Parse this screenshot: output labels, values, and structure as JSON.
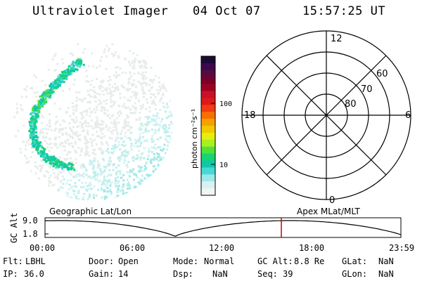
{
  "header": {
    "instrument": "Ultraviolet Imager",
    "date": "04 Oct 07",
    "time": "15:57:25 UT"
  },
  "colorbar": {
    "label": "photon cm⁻²s⁻¹",
    "ticks": [
      "100",
      "10"
    ],
    "colors": [
      "#1c0a36",
      "#3a0a4a",
      "#5a0a40",
      "#7a0028",
      "#a00020",
      "#c8102a",
      "#e01818",
      "#f03c10",
      "#f57000",
      "#f8a000",
      "#f2c800",
      "#e6ee10",
      "#a8f020",
      "#50e23a",
      "#18d470",
      "#10c8a8",
      "#48d8d8",
      "#9ee8e8",
      "#d8f2f2",
      "#f0f6f4"
    ]
  },
  "polar_plot": {
    "mlt_labels": {
      "top": "12",
      "right": "6",
      "bottom": "0",
      "left": "18"
    },
    "lat_labels": [
      "60",
      "70",
      "80"
    ]
  },
  "track": {
    "y_label": "GC Alt",
    "y_ticks": [
      "9.0",
      "1.8"
    ],
    "left_title": "Geographic Lat/Lon",
    "right_title": "Apex MLat/MLT",
    "x_ticks": [
      "00:00",
      "06:00",
      "12:00",
      "18:00",
      "23:59"
    ],
    "current_time_fraction": 0.664,
    "line_color": "#cc0000"
  },
  "info": {
    "rows": [
      [
        [
          "Flt:",
          "LBHL"
        ],
        [
          "Door:",
          "Open"
        ],
        [
          "Mode:",
          "Normal"
        ],
        [
          "GC Alt:",
          "8.8 Re"
        ],
        [
          "GLat:",
          "NaN"
        ]
      ],
      [
        [
          "IP:",
          "36.0"
        ],
        [
          "Gain:",
          "14"
        ],
        [
          "Dsp:",
          "NaN"
        ],
        [
          "Seq:",
          "39"
        ],
        [
          "GLon:",
          "NaN"
        ]
      ]
    ]
  }
}
